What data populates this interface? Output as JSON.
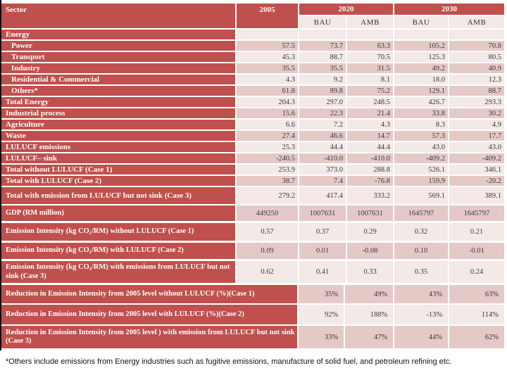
{
  "header": {
    "sector": "Sector",
    "col_2005": "2005",
    "col_2020": "2020",
    "col_2030": "2030",
    "sub_bau": "BAU",
    "sub_amb": "AMB"
  },
  "main_rows": [
    {
      "label": "Energy",
      "indent": false,
      "values": [
        "",
        "",
        "",
        "",
        ""
      ]
    },
    {
      "label": "Power",
      "indent": true,
      "values": [
        "57.5",
        "73.7",
        "63.3",
        "105.2",
        "70.8"
      ]
    },
    {
      "label": "Transport",
      "indent": true,
      "values": [
        "45.3",
        "88.7",
        "70.5",
        "125.3",
        "80.5"
      ]
    },
    {
      "label": "Industry",
      "indent": true,
      "values": [
        "35.5",
        "35.5",
        "31.5",
        "49.2",
        "40.9"
      ]
    },
    {
      "label": "Residential & Commercial",
      "indent": true,
      "values": [
        "4.3",
        "9.2",
        "8.1",
        "18.0",
        "12.3"
      ]
    },
    {
      "label": "Others*",
      "indent": true,
      "values": [
        "61.8",
        "89.8",
        "75.2",
        "129.1",
        "88.7"
      ]
    },
    {
      "label": "Total Energy",
      "indent": false,
      "values": [
        "204.3",
        "297.0",
        "248.5",
        "426.7",
        "293.3"
      ]
    },
    {
      "label": "Industrial process",
      "indent": false,
      "values": [
        "15.6",
        "22.3",
        "21.4",
        "33.8",
        "30.2"
      ]
    },
    {
      "label": "Agriculture",
      "indent": false,
      "values": [
        "6.6",
        "7.2",
        "4.3",
        "8.3",
        "4.9"
      ]
    },
    {
      "label": "Waste",
      "indent": false,
      "values": [
        "27.4",
        "46.6",
        "14.7",
        "57.3",
        "17.7"
      ]
    },
    {
      "label": "LULUCF emissions",
      "indent": false,
      "values": [
        "25.3",
        "44.4",
        "44.4",
        "43.0",
        "43.0"
      ]
    },
    {
      "label": "LULUCF– sink",
      "indent": false,
      "values": [
        "-240.5",
        "-410.0",
        "-410.0",
        "-409.2",
        "-409.2"
      ]
    },
    {
      "label": "Total without LULUCF (Case 1)",
      "indent": false,
      "values": [
        "253.9",
        "373.0",
        "288.8",
        "526.1",
        "346.1"
      ]
    },
    {
      "label": "Total with LULUCF (Case 2)",
      "indent": false,
      "values": [
        "38.7",
        "7.4",
        "-76.8",
        "159.9",
        "-20.2"
      ]
    },
    {
      "label": "Total with emission from LULUCF but not sink (Case 3)",
      "indent": false,
      "values": [
        "279.2",
        "417.4",
        "333.2",
        "569.1",
        "389.1"
      ]
    }
  ],
  "gdp_ei_rows": [
    {
      "label": "GDP (RM million)",
      "values": [
        "449250",
        "1007631",
        "1007631",
        "1645797",
        "1645797"
      ]
    },
    {
      "label": "Emission Intensity (kg CO₂/RM) without LULUCF (Case 1)",
      "values": [
        "0.57",
        "0.37",
        "0.29",
        "0.32",
        "0.21"
      ]
    },
    {
      "label": "Emission Intensity (kg CO₂/RM) with LULUCF (Case 2)",
      "values": [
        "0.09",
        "0.01",
        "-0.08",
        "0.10",
        "-0.01"
      ]
    },
    {
      "label": "Emission Intensity (kg CO₂/RM) with emissions from LULUCF but not sink (Case 3)",
      "values": [
        "0.62",
        "0.41",
        "0.33",
        "0.35",
        "0.24"
      ]
    }
  ],
  "reduction_rows": [
    {
      "label": "Reduction in Emission Intensity from 2005 level without LULUCF (%)(Case 1)",
      "values": [
        "35%",
        "49%",
        "43%",
        "63%"
      ]
    },
    {
      "label": "Reduction in Emission Intensity   from 2005 level with LULUCF (%)(Case 2)",
      "values": [
        "92%",
        "188%",
        "-13%",
        "114%"
      ]
    },
    {
      "label": "Reduction in Emission Intensity   from 2005 level ) with emission from LULUCF but not sink (Case 3)",
      "values": [
        "33%",
        "47%",
        "44%",
        "62%"
      ]
    }
  ],
  "footnote": "*Others include emissions from Energy industries such as fugitive emissions, manufacture of solid fuel, and petroleum refining etc.",
  "colors": {
    "header_red": "#C0504D",
    "band_dark": "#E5C9C6",
    "band_light": "#F3E9E6",
    "left_border": "#000000",
    "data_text": "#3A3A3A"
  }
}
